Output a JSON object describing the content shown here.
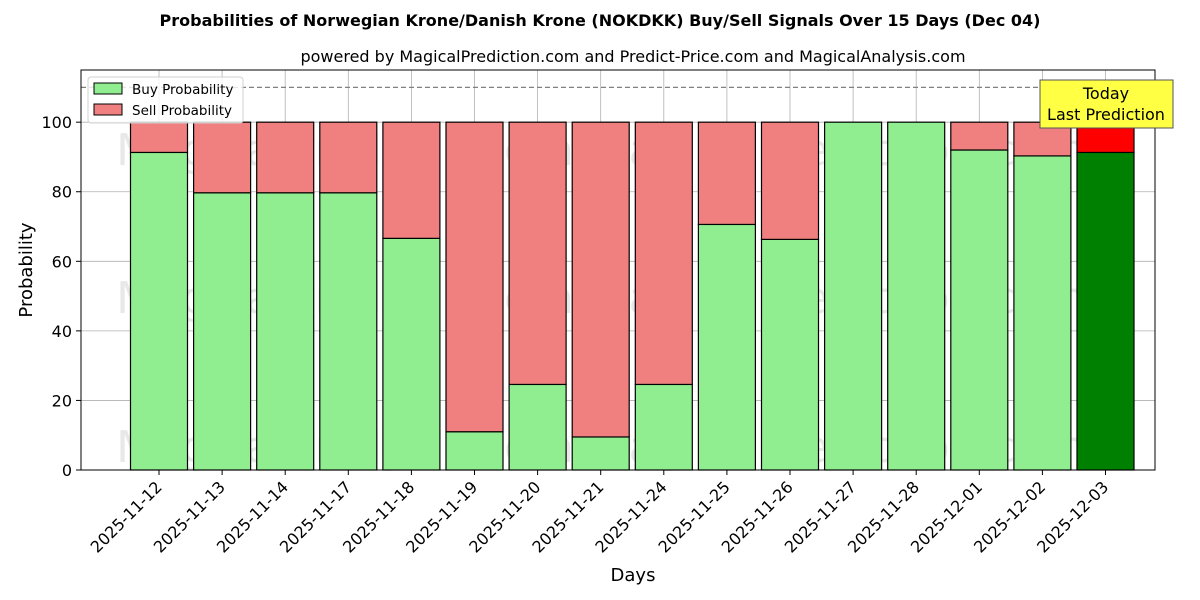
{
  "chart_data": {
    "type": "bar",
    "stacked": true,
    "title": "Probabilities of Norwegian Krone/Danish Krone (NOKDKK) Buy/Sell Signals Over 15 Days (Dec 04)",
    "subtitle": "powered by MagicalPrediction.com and Predict-Price.com and MagicalAnalysis.com",
    "xlabel": "Days",
    "ylabel": "Probability",
    "ylim": [
      0,
      115
    ],
    "yticks": [
      0,
      20,
      40,
      60,
      80,
      100
    ],
    "grid": true,
    "legend_position": "upper left",
    "reference_line": {
      "y": 110,
      "style": "dashed",
      "color": "#808080"
    },
    "categories": [
      "2025-11-12",
      "2025-11-13",
      "2025-11-14",
      "2025-11-17",
      "2025-11-18",
      "2025-11-19",
      "2025-11-20",
      "2025-11-21",
      "2025-11-24",
      "2025-11-25",
      "2025-11-26",
      "2025-11-27",
      "2025-11-28",
      "2025-12-01",
      "2025-12-02",
      "2025-12-03"
    ],
    "series": [
      {
        "name": "Buy Probability",
        "color": "#90ee90",
        "values": [
          91.3,
          79.7,
          79.7,
          79.7,
          66.6,
          11.0,
          24.6,
          9.5,
          24.6,
          70.6,
          66.3,
          100.0,
          100.0,
          92.0,
          90.3,
          91.3
        ]
      },
      {
        "name": "Sell Probability",
        "color": "#f08080",
        "values": [
          8.7,
          20.3,
          20.3,
          20.3,
          33.4,
          89.0,
          75.4,
          90.5,
          75.4,
          29.4,
          33.7,
          0.0,
          0.0,
          8.0,
          9.7,
          8.7
        ]
      }
    ],
    "highlight_last": {
      "buy_color": "#008000",
      "sell_color": "#ff0000"
    },
    "annotation": {
      "text_line1": "Today",
      "text_line2": "Last Prediction",
      "background": "#ffff44"
    },
    "watermarks": [
      "MagicalAnalysis.com",
      "MagicalPrediction.com"
    ]
  }
}
